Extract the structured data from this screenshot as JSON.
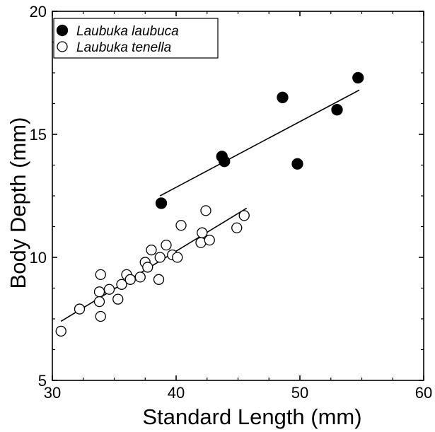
{
  "chart_data": {
    "type": "scatter",
    "xlabel": "Standard Length (mm)",
    "ylabel": "Body Depth (mm)",
    "xlim": [
      30,
      60
    ],
    "ylim": [
      5,
      20
    ],
    "x_ticks": [
      "30",
      "40",
      "50",
      "60"
    ],
    "y_ticks": [
      "5",
      "10",
      "15",
      "20"
    ],
    "grid": false,
    "legend_position": "top-left",
    "series": [
      {
        "name": "Laubuka laubuca",
        "marker": "filled-circle",
        "color": "#000000",
        "points": [
          [
            38.8,
            12.2
          ],
          [
            43.7,
            14.1
          ],
          [
            43.9,
            13.9
          ],
          [
            48.6,
            16.5
          ],
          [
            49.8,
            13.8
          ],
          [
            53.0,
            16.0
          ],
          [
            54.7,
            17.3
          ]
        ],
        "fit_line": [
          [
            38.7,
            12.5
          ],
          [
            54.8,
            16.8
          ]
        ]
      },
      {
        "name": "Laubuka tenella",
        "marker": "open-circle",
        "color": "#000000",
        "points": [
          [
            30.7,
            7.0
          ],
          [
            32.2,
            7.9
          ],
          [
            33.8,
            8.6
          ],
          [
            33.9,
            9.3
          ],
          [
            33.8,
            8.2
          ],
          [
            33.9,
            7.6
          ],
          [
            34.6,
            8.7
          ],
          [
            35.3,
            8.3
          ],
          [
            35.6,
            8.9
          ],
          [
            36.0,
            9.3
          ],
          [
            36.3,
            9.1
          ],
          [
            37.1,
            9.2
          ],
          [
            37.5,
            9.8
          ],
          [
            37.7,
            9.6
          ],
          [
            38.0,
            10.3
          ],
          [
            38.6,
            9.1
          ],
          [
            38.7,
            10.0
          ],
          [
            39.2,
            10.5
          ],
          [
            39.7,
            10.1
          ],
          [
            40.1,
            10.0
          ],
          [
            40.4,
            11.3
          ],
          [
            42.0,
            10.6
          ],
          [
            42.1,
            11.0
          ],
          [
            42.4,
            11.9
          ],
          [
            42.7,
            10.7
          ],
          [
            44.9,
            11.2
          ],
          [
            45.5,
            11.7
          ]
        ],
        "fit_line": [
          [
            30.7,
            7.4
          ],
          [
            45.7,
            12.0
          ]
        ]
      }
    ]
  }
}
